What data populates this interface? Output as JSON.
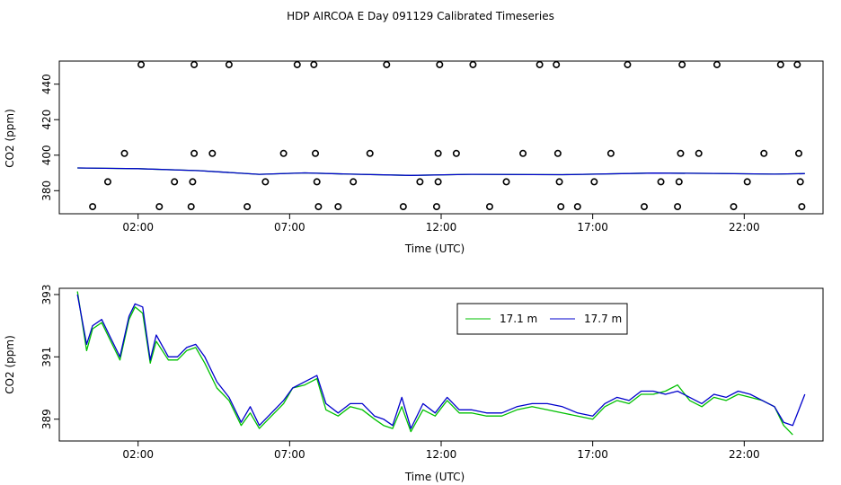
{
  "title": "HDP AIRCOA E  Day 091129  Calibrated Timeseries",
  "colors": {
    "green": "#00c000",
    "blue": "#0000cc"
  },
  "chart_data": [
    {
      "type": "scatter",
      "xlabel": "Time (UTC)",
      "ylabel": "CO2 (ppm)",
      "xlim": [
        -0.6,
        24.6
      ],
      "ylim": [
        367,
        453
      ],
      "xticks": [
        {
          "v": 2,
          "label": "02:00"
        },
        {
          "v": 7,
          "label": "07:00"
        },
        {
          "v": 12,
          "label": "12:00"
        },
        {
          "v": 17,
          "label": "17:00"
        },
        {
          "v": 22,
          "label": "22:00"
        }
      ],
      "yticks": [
        {
          "v": 380,
          "label": "380"
        },
        {
          "v": 400,
          "label": "400"
        },
        {
          "v": 420,
          "label": "420"
        },
        {
          "v": 440,
          "label": "440"
        }
      ],
      "points": [
        {
          "x": 0.5,
          "y": 371
        },
        {
          "x": 1.0,
          "y": 385
        },
        {
          "x": 1.55,
          "y": 401
        },
        {
          "x": 2.1,
          "y": 451
        },
        {
          "x": 2.7,
          "y": 371
        },
        {
          "x": 3.2,
          "y": 385
        },
        {
          "x": 3.75,
          "y": 371
        },
        {
          "x": 3.8,
          "y": 385
        },
        {
          "x": 3.85,
          "y": 401
        },
        {
          "x": 3.85,
          "y": 451
        },
        {
          "x": 4.45,
          "y": 401
        },
        {
          "x": 5.0,
          "y": 451
        },
        {
          "x": 5.6,
          "y": 371
        },
        {
          "x": 6.2,
          "y": 385
        },
        {
          "x": 6.8,
          "y": 401
        },
        {
          "x": 7.25,
          "y": 451
        },
        {
          "x": 7.8,
          "y": 451
        },
        {
          "x": 7.85,
          "y": 401
        },
        {
          "x": 7.9,
          "y": 385
        },
        {
          "x": 7.95,
          "y": 371
        },
        {
          "x": 8.6,
          "y": 371
        },
        {
          "x": 9.1,
          "y": 385
        },
        {
          "x": 9.65,
          "y": 401
        },
        {
          "x": 10.2,
          "y": 451
        },
        {
          "x": 10.75,
          "y": 371
        },
        {
          "x": 11.3,
          "y": 385
        },
        {
          "x": 11.85,
          "y": 371
        },
        {
          "x": 11.9,
          "y": 385
        },
        {
          "x": 11.9,
          "y": 401
        },
        {
          "x": 11.95,
          "y": 451
        },
        {
          "x": 12.5,
          "y": 401
        },
        {
          "x": 13.05,
          "y": 451
        },
        {
          "x": 13.6,
          "y": 371
        },
        {
          "x": 14.15,
          "y": 385
        },
        {
          "x": 14.7,
          "y": 401
        },
        {
          "x": 15.25,
          "y": 451
        },
        {
          "x": 15.8,
          "y": 451
        },
        {
          "x": 15.85,
          "y": 401
        },
        {
          "x": 15.9,
          "y": 385
        },
        {
          "x": 15.95,
          "y": 371
        },
        {
          "x": 16.5,
          "y": 371
        },
        {
          "x": 17.05,
          "y": 385
        },
        {
          "x": 17.6,
          "y": 401
        },
        {
          "x": 18.15,
          "y": 451
        },
        {
          "x": 18.7,
          "y": 371
        },
        {
          "x": 19.25,
          "y": 385
        },
        {
          "x": 19.8,
          "y": 371
        },
        {
          "x": 19.85,
          "y": 385
        },
        {
          "x": 19.9,
          "y": 401
        },
        {
          "x": 19.95,
          "y": 451
        },
        {
          "x": 20.5,
          "y": 401
        },
        {
          "x": 21.1,
          "y": 451
        },
        {
          "x": 21.65,
          "y": 371
        },
        {
          "x": 22.1,
          "y": 385
        },
        {
          "x": 22.65,
          "y": 401
        },
        {
          "x": 23.2,
          "y": 451
        },
        {
          "x": 23.75,
          "y": 451
        },
        {
          "x": 23.8,
          "y": 401
        },
        {
          "x": 23.85,
          "y": 385
        },
        {
          "x": 23.9,
          "y": 371
        }
      ],
      "series": [
        {
          "color": "#00c000",
          "x": [
            0,
            2,
            4,
            6,
            7.5,
            9,
            11,
            13,
            16,
            19,
            21,
            23,
            24.0
          ],
          "y": [
            392.8,
            392.4,
            391.3,
            389.2,
            390.0,
            389.3,
            388.6,
            389.2,
            389.0,
            389.9,
            389.7,
            389.3,
            389.6
          ]
        },
        {
          "color": "#0000cc",
          "x": [
            0,
            2,
            4,
            6,
            7.5,
            9,
            11,
            13,
            16,
            19,
            21,
            23,
            24.0
          ],
          "y": [
            392.8,
            392.4,
            391.3,
            389.2,
            390.0,
            389.3,
            388.6,
            389.2,
            389.0,
            389.9,
            389.7,
            389.3,
            389.6
          ]
        }
      ]
    },
    {
      "type": "line",
      "xlabel": "Time (UTC)",
      "ylabel": "CO2 (ppm)",
      "xlim": [
        -0.6,
        24.6
      ],
      "ylim": [
        388.3,
        393.2
      ],
      "xticks": [
        {
          "v": 2,
          "label": "02:00"
        },
        {
          "v": 7,
          "label": "07:00"
        },
        {
          "v": 12,
          "label": "12:00"
        },
        {
          "v": 17,
          "label": "17:00"
        },
        {
          "v": 22,
          "label": "22:00"
        }
      ],
      "yticks": [
        {
          "v": 389,
          "label": "389"
        },
        {
          "v": 391,
          "label": "391"
        },
        {
          "v": 393,
          "label": "393"
        }
      ],
      "legend": {
        "position": "top-right"
      },
      "series": [
        {
          "name": "17.1 m",
          "color": "#00c000",
          "x": [
            0.0,
            0.3,
            0.5,
            0.8,
            1.1,
            1.4,
            1.7,
            1.9,
            2.15,
            2.4,
            2.6,
            3.0,
            3.3,
            3.6,
            3.9,
            4.2,
            4.6,
            5.0,
            5.4,
            5.7,
            6.0,
            6.4,
            6.8,
            7.1,
            7.5,
            7.9,
            8.2,
            8.6,
            9.0,
            9.4,
            9.8,
            10.1,
            10.4,
            10.7,
            11.0,
            11.4,
            11.8,
            12.2,
            12.6,
            13.0,
            13.5,
            14.0,
            14.5,
            15.0,
            15.5,
            16.0,
            16.5,
            17.0,
            17.4,
            17.8,
            18.2,
            18.6,
            19.0,
            19.4,
            19.8,
            20.2,
            20.6,
            21.0,
            21.4,
            21.8,
            22.2,
            22.6,
            23.0,
            23.3,
            23.6
          ],
          "y": [
            393.1,
            391.2,
            391.9,
            392.1,
            391.5,
            390.9,
            392.2,
            392.6,
            392.4,
            390.8,
            391.5,
            390.9,
            390.9,
            391.2,
            391.3,
            390.8,
            390.0,
            389.6,
            388.8,
            389.2,
            388.7,
            389.1,
            389.5,
            390.0,
            390.1,
            390.3,
            389.3,
            389.1,
            389.4,
            389.3,
            389.0,
            388.8,
            388.7,
            389.4,
            388.6,
            389.3,
            389.1,
            389.6,
            389.2,
            389.2,
            389.1,
            389.1,
            389.3,
            389.4,
            389.3,
            389.2,
            389.1,
            389.0,
            389.4,
            389.6,
            389.5,
            389.8,
            389.8,
            389.9,
            390.1,
            389.6,
            389.4,
            389.7,
            389.6,
            389.8,
            389.7,
            389.6,
            389.4,
            388.8,
            388.5
          ]
        },
        {
          "name": "17.7 m",
          "color": "#0000cc",
          "x": [
            0.0,
            0.3,
            0.5,
            0.8,
            1.1,
            1.4,
            1.7,
            1.9,
            2.15,
            2.4,
            2.6,
            3.0,
            3.3,
            3.6,
            3.9,
            4.2,
            4.6,
            5.0,
            5.4,
            5.7,
            6.0,
            6.4,
            6.8,
            7.1,
            7.5,
            7.9,
            8.2,
            8.6,
            9.0,
            9.4,
            9.8,
            10.1,
            10.4,
            10.7,
            11.0,
            11.4,
            11.8,
            12.2,
            12.6,
            13.0,
            13.5,
            14.0,
            14.5,
            15.0,
            15.5,
            16.0,
            16.5,
            17.0,
            17.4,
            17.8,
            18.2,
            18.6,
            19.0,
            19.4,
            19.8,
            20.2,
            20.6,
            21.0,
            21.4,
            21.8,
            22.2,
            22.6,
            23.0,
            23.3,
            23.6,
            24.0
          ],
          "y": [
            393.0,
            391.4,
            392.0,
            392.2,
            391.6,
            391.0,
            392.3,
            392.7,
            392.6,
            390.9,
            391.7,
            391.0,
            391.0,
            391.3,
            391.4,
            391.0,
            390.2,
            389.7,
            388.9,
            389.4,
            388.8,
            389.2,
            389.6,
            390.0,
            390.2,
            390.4,
            389.5,
            389.2,
            389.5,
            389.5,
            389.1,
            389.0,
            388.8,
            389.7,
            388.7,
            389.5,
            389.2,
            389.7,
            389.3,
            389.3,
            389.2,
            389.2,
            389.4,
            389.5,
            389.5,
            389.4,
            389.2,
            389.1,
            389.5,
            389.7,
            389.6,
            389.9,
            389.9,
            389.8,
            389.9,
            389.7,
            389.5,
            389.8,
            389.7,
            389.9,
            389.8,
            389.6,
            389.4,
            388.9,
            388.8,
            389.8
          ]
        }
      ]
    }
  ]
}
